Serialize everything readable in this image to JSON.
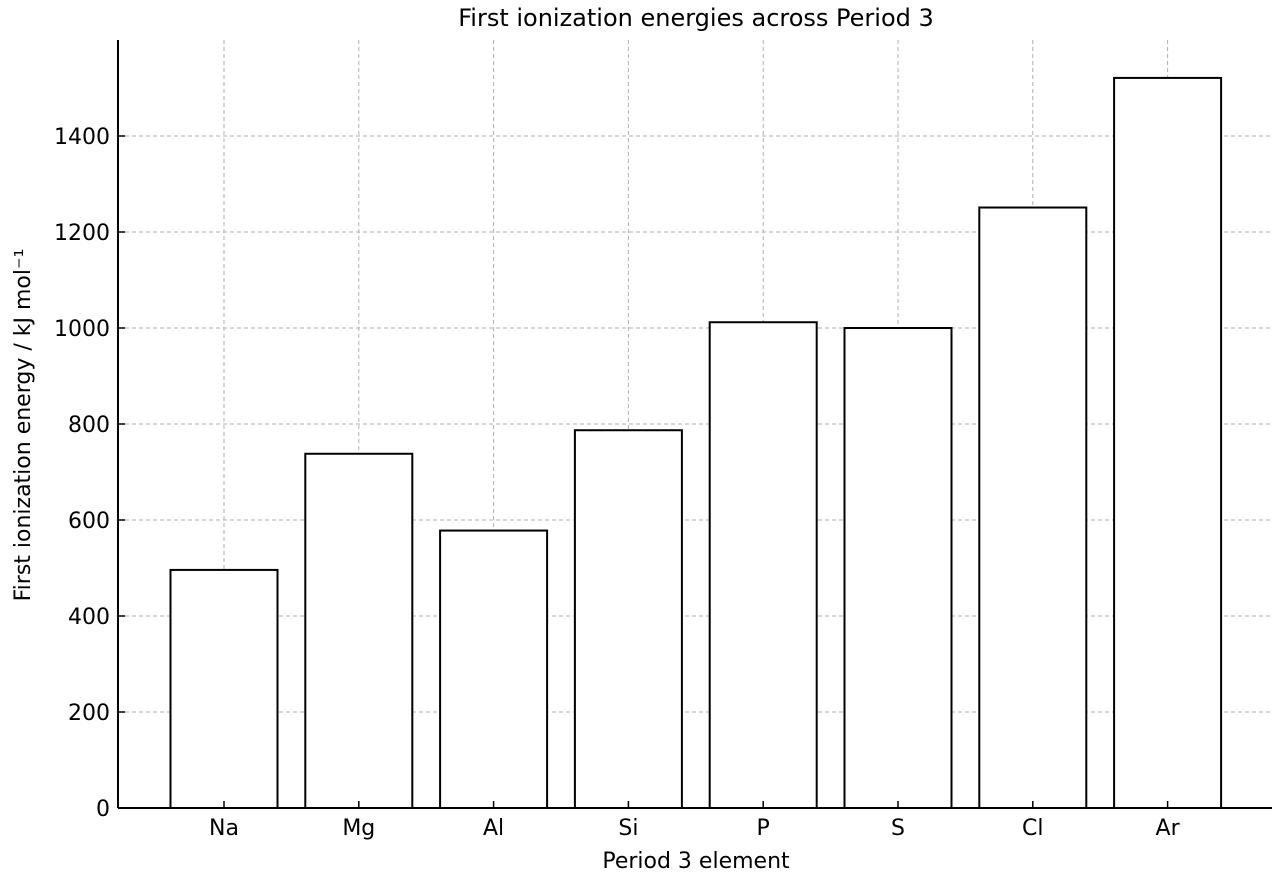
{
  "chart_data": {
    "type": "bar",
    "title": "First ionization energies across Period 3",
    "xlabel": "Period 3 element",
    "ylabel": "First ionization energy / kJ mol⁻¹",
    "categories": [
      "Na",
      "Mg",
      "Al",
      "Si",
      "P",
      "S",
      "Cl",
      "Ar"
    ],
    "values": [
      496,
      738,
      578,
      787,
      1012,
      1000,
      1251,
      1521
    ],
    "ylim": [
      0,
      1600
    ],
    "yticks": [
      0,
      200,
      400,
      600,
      800,
      1000,
      1200,
      1400
    ],
    "grid": true,
    "bar_fill": "#ffffff",
    "bar_edge": "#000000",
    "grid_color": "#b0b0b0"
  }
}
